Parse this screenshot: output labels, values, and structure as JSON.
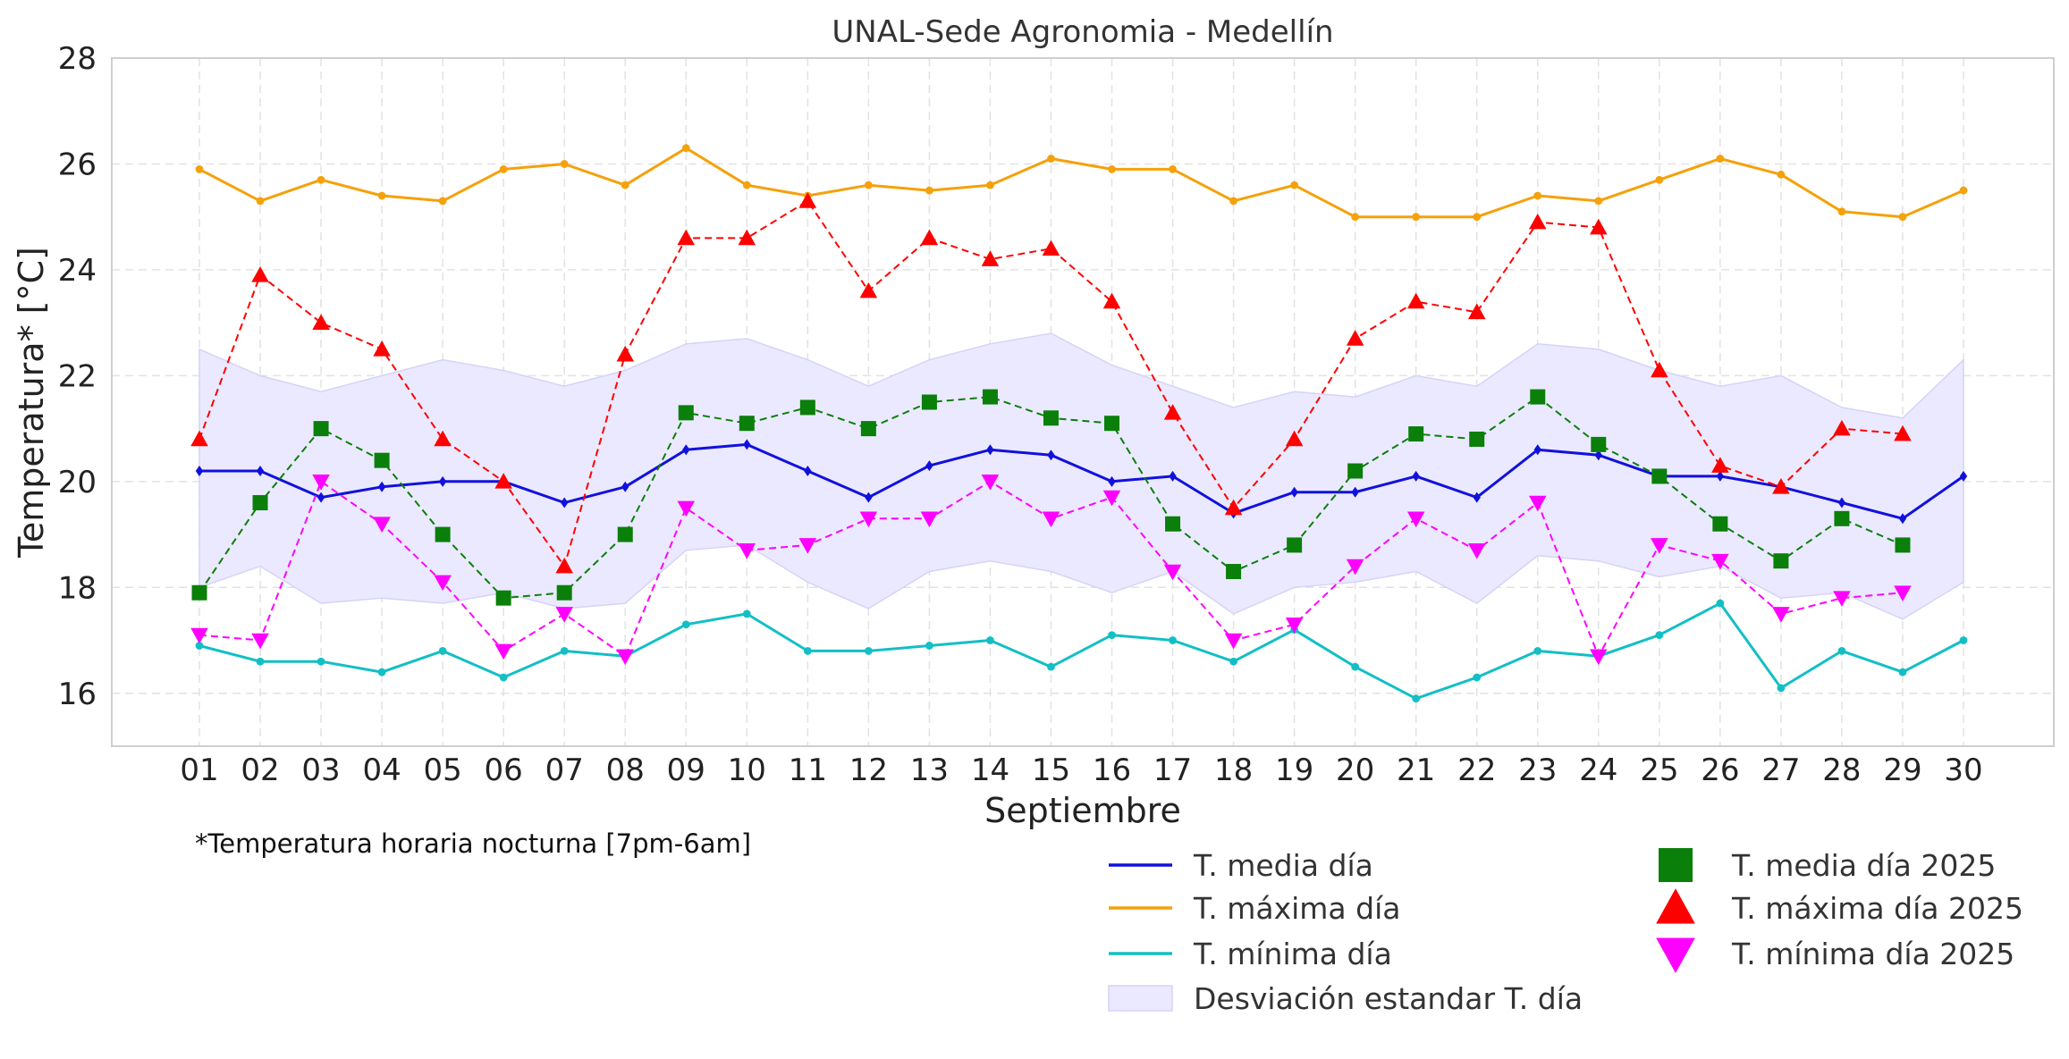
{
  "chart_data": {
    "type": "line",
    "title": "UNAL-Sede Agronomia - Medellín",
    "xlabel": "Septiembre",
    "ylabel": "Temperatura* [°C]",
    "note": "*Temperatura horaria nocturna [7pm-6am]",
    "ylim": [
      15,
      28
    ],
    "yticks": [
      16,
      18,
      20,
      22,
      24,
      26,
      28
    ],
    "grid": true,
    "legend_position": "bottom-right",
    "categories": [
      "01",
      "02",
      "03",
      "04",
      "05",
      "06",
      "07",
      "08",
      "09",
      "10",
      "11",
      "12",
      "13",
      "14",
      "15",
      "16",
      "17",
      "18",
      "19",
      "20",
      "21",
      "22",
      "23",
      "24",
      "25",
      "26",
      "27",
      "28",
      "29",
      "30"
    ],
    "band": {
      "name": "Desviación estandar T. día",
      "color": "#ebe9ff",
      "edge_color": "#d6d3f7",
      "upper": [
        22.5,
        22.0,
        21.7,
        22.0,
        22.3,
        22.1,
        21.8,
        22.1,
        22.6,
        22.7,
        22.3,
        21.8,
        22.3,
        22.6,
        22.8,
        22.2,
        21.8,
        21.4,
        21.7,
        21.6,
        22.0,
        21.8,
        22.6,
        22.5,
        22.1,
        21.8,
        22.0,
        21.4,
        21.2,
        22.3
      ],
      "lower": [
        18.0,
        18.4,
        17.7,
        17.8,
        17.7,
        17.9,
        17.6,
        17.7,
        18.7,
        18.8,
        18.1,
        17.6,
        18.3,
        18.5,
        18.3,
        17.9,
        18.3,
        17.5,
        18.0,
        18.1,
        18.3,
        17.7,
        18.6,
        18.5,
        18.2,
        18.4,
        17.8,
        17.9,
        17.4,
        18.1
      ]
    },
    "series": [
      {
        "name": "T. media día",
        "color": "#1111dd",
        "style": "solid",
        "marker": "diamond",
        "legend_marker": "line",
        "values": [
          20.2,
          20.2,
          19.7,
          19.9,
          20.0,
          20.0,
          19.6,
          19.9,
          20.6,
          20.7,
          20.2,
          19.7,
          20.3,
          20.6,
          20.5,
          20.0,
          20.1,
          19.4,
          19.8,
          19.8,
          20.1,
          19.7,
          20.6,
          20.5,
          20.1,
          20.1,
          19.9,
          19.6,
          19.3,
          20.1
        ]
      },
      {
        "name": "T. máxima día",
        "color": "#f5a10a",
        "style": "solid",
        "marker": "circle",
        "legend_marker": "line",
        "values": [
          25.9,
          25.3,
          25.7,
          25.4,
          25.3,
          25.9,
          26.0,
          25.6,
          26.3,
          25.6,
          25.4,
          25.6,
          25.5,
          25.6,
          26.1,
          25.9,
          25.9,
          25.3,
          25.6,
          25.0,
          25.0,
          25.0,
          25.4,
          25.3,
          25.7,
          26.1,
          25.8,
          25.1,
          25.0,
          25.5
        ]
      },
      {
        "name": "T. mínima día",
        "color": "#12bfc5",
        "style": "solid",
        "marker": "circle",
        "legend_marker": "line",
        "values": [
          16.9,
          16.6,
          16.6,
          16.4,
          16.8,
          16.3,
          16.8,
          16.7,
          17.3,
          17.5,
          16.8,
          16.8,
          16.9,
          17.0,
          16.5,
          17.1,
          17.0,
          16.6,
          17.2,
          16.5,
          15.9,
          16.3,
          16.8,
          16.7,
          17.1,
          17.7,
          16.1,
          16.8,
          16.4,
          17.0
        ]
      },
      {
        "name": "T. media día 2025",
        "color": "#0a7f0a",
        "style": "dashed",
        "marker": "square",
        "legend_marker": "square",
        "values": [
          17.9,
          19.6,
          21.0,
          20.4,
          19.0,
          17.8,
          17.9,
          19.0,
          21.3,
          21.1,
          21.4,
          21.0,
          21.5,
          21.6,
          21.2,
          21.1,
          19.2,
          18.3,
          18.8,
          20.2,
          20.9,
          20.8,
          21.6,
          20.7,
          20.1,
          19.2,
          18.5,
          19.3,
          18.8,
          null
        ]
      },
      {
        "name": "T. máxima día 2025",
        "color": "#ff0000",
        "style": "dashed",
        "marker": "triangle-up",
        "legend_marker": "triangle-up",
        "values": [
          20.8,
          23.9,
          23.0,
          22.5,
          20.8,
          20.0,
          18.4,
          22.4,
          24.6,
          24.6,
          25.3,
          23.6,
          24.6,
          24.2,
          24.4,
          23.4,
          21.3,
          19.5,
          20.8,
          22.7,
          23.4,
          23.2,
          24.9,
          24.8,
          22.1,
          20.3,
          19.9,
          21.0,
          20.9,
          null
        ]
      },
      {
        "name": "T. mínima día 2025",
        "color": "#ff00ff",
        "style": "dashed",
        "marker": "triangle-down",
        "legend_marker": "triangle-down",
        "values": [
          17.1,
          17.0,
          20.0,
          19.2,
          18.1,
          16.8,
          17.5,
          16.7,
          19.5,
          18.7,
          18.8,
          19.3,
          19.3,
          20.0,
          19.3,
          19.7,
          18.3,
          17.0,
          17.3,
          18.4,
          19.3,
          18.7,
          19.6,
          16.7,
          18.8,
          18.5,
          17.5,
          17.8,
          17.9,
          null
        ]
      }
    ]
  }
}
